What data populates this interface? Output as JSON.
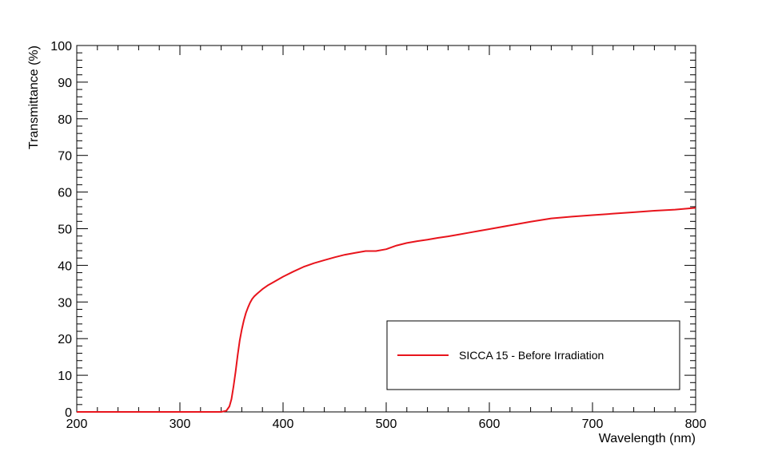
{
  "chart_data": {
    "type": "line",
    "title": "",
    "xlabel": "Wavelength (nm)",
    "ylabel": "Transmittance (%)",
    "xlim": [
      200,
      800
    ],
    "ylim": [
      0,
      100
    ],
    "x_ticks": [
      200,
      300,
      400,
      500,
      600,
      700,
      800
    ],
    "y_ticks": [
      0,
      10,
      20,
      30,
      40,
      50,
      60,
      70,
      80,
      90,
      100
    ],
    "grid": false,
    "legend_position": "bottom-right",
    "series": [
      {
        "name": "SICCA 15 - Before Irradiation",
        "color": "#e8141c",
        "x": [
          200,
          250,
          300,
          340,
          345,
          348,
          350,
          352,
          354,
          356,
          358,
          360,
          362,
          364,
          366,
          368,
          370,
          372,
          375,
          380,
          385,
          390,
          400,
          410,
          420,
          430,
          440,
          450,
          460,
          470,
          480,
          490,
          500,
          510,
          520,
          530,
          540,
          550,
          560,
          570,
          580,
          590,
          600,
          620,
          640,
          660,
          680,
          700,
          720,
          740,
          760,
          780,
          800
        ],
        "y": [
          0,
          0,
          0,
          0,
          0.3,
          1.5,
          3.5,
          7,
          11,
          15.5,
          19.5,
          22.5,
          25,
          27,
          28.5,
          29.8,
          30.8,
          31.5,
          32.3,
          33.5,
          34.5,
          35.3,
          36.9,
          38.3,
          39.6,
          40.6,
          41.4,
          42.2,
          42.9,
          43.4,
          43.9,
          43.9,
          44.4,
          45.4,
          46.1,
          46.6,
          47.0,
          47.5,
          47.9,
          48.4,
          48.9,
          49.4,
          49.9,
          50.9,
          51.9,
          52.8,
          53.3,
          53.7,
          54.1,
          54.5,
          54.9,
          55.2,
          55.7
        ]
      }
    ]
  }
}
